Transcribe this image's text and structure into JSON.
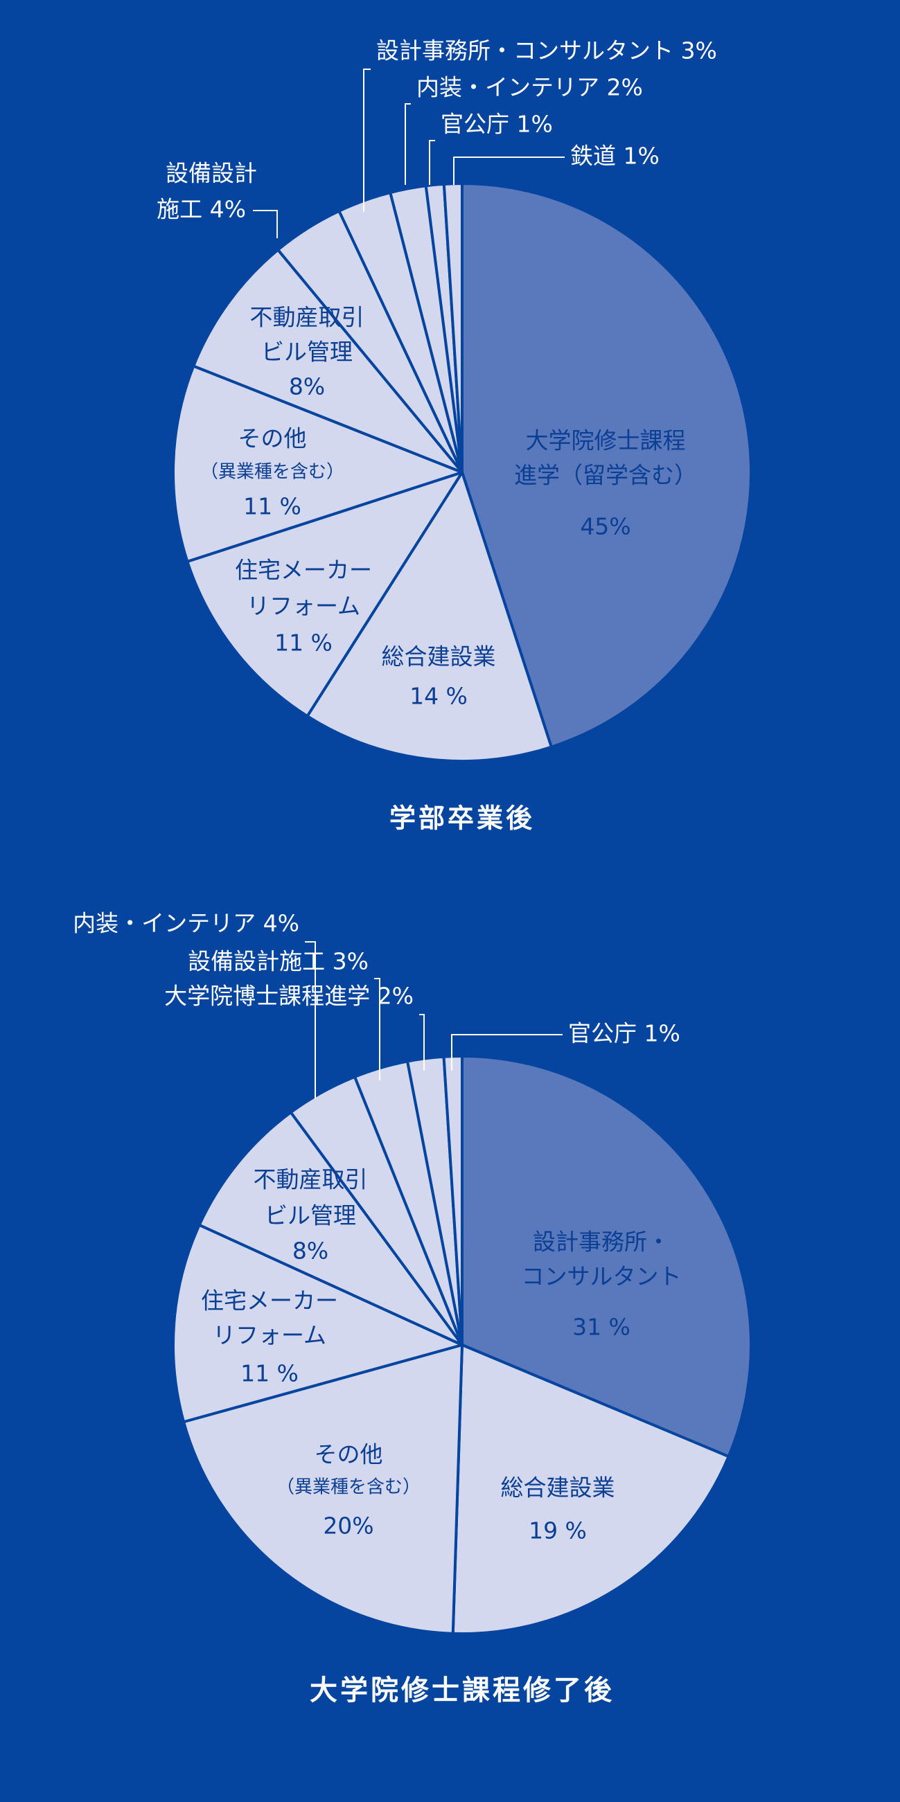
{
  "colors": {
    "background": "#0545a0",
    "highlight_slice": "#5a79bd",
    "slice": "#d4d8ee",
    "slice_border": "#0545a0",
    "label_inside": "#0b3f94",
    "label_outside": "#ffffff",
    "leader": "#ffffff"
  },
  "chart_data": [
    {
      "type": "pie",
      "title": "学部卒業後",
      "slices": [
        {
          "label": "大学院修士課程進学（留学含む）",
          "lines": [
            "大学院修士課程",
            "進学（留学含む）"
          ],
          "value": 45,
          "value_label": "45%",
          "highlight": true
        },
        {
          "label": "総合建設業",
          "lines": [
            "総合建設業"
          ],
          "value": 14,
          "value_label": "14 %"
        },
        {
          "label": "住宅メーカー リフォーム",
          "lines": [
            "住宅メーカー",
            "リフォーム"
          ],
          "value": 11,
          "value_label": "11 %"
        },
        {
          "label": "その他（異業種を含む）",
          "lines": [
            "その他",
            "（異業種を含む）"
          ],
          "value": 11,
          "value_label": "11 %"
        },
        {
          "label": "不動産取引 ビル管理",
          "lines": [
            "不動産取引",
            "ビル管理"
          ],
          "value": 8,
          "value_label": "8%"
        },
        {
          "label": "設備設計施工",
          "lines": [
            "設備設計",
            "施工 4%"
          ],
          "value": 4,
          "value_label": "4%",
          "outside": true
        },
        {
          "label": "設計事務所・コンサルタント",
          "lines": [
            "設計事務所・コンサルタント 3%"
          ],
          "value": 3,
          "value_label": "3%",
          "outside": true
        },
        {
          "label": "内装・インテリア",
          "lines": [
            "内装・インテリア 2%"
          ],
          "value": 2,
          "value_label": "2%",
          "outside": true
        },
        {
          "label": "官公庁",
          "lines": [
            "官公庁 1%"
          ],
          "value": 1,
          "value_label": "1%",
          "outside": true
        },
        {
          "label": "鉄道",
          "lines": [
            "鉄道 1%"
          ],
          "value": 1,
          "value_label": "1%",
          "outside": true
        }
      ]
    },
    {
      "type": "pie",
      "title": "大学院修士課程修了後",
      "slices": [
        {
          "label": "設計事務所・コンサルタント",
          "lines": [
            "設計事務所・",
            "コンサルタント"
          ],
          "value": 31,
          "value_label": "31 %",
          "highlight": true
        },
        {
          "label": "総合建設業",
          "lines": [
            "総合建設業"
          ],
          "value": 19,
          "value_label": "19 %"
        },
        {
          "label": "その他（異業種を含む）",
          "lines": [
            "その他",
            "（異業種を含む）"
          ],
          "value": 20,
          "value_label": "20%"
        },
        {
          "label": "住宅メーカー リフォーム",
          "lines": [
            "住宅メーカー",
            "リフォーム"
          ],
          "value": 11,
          "value_label": "11 %"
        },
        {
          "label": "不動産取引 ビル管理",
          "lines": [
            "不動産取引",
            "ビル管理"
          ],
          "value": 8,
          "value_label": "8%"
        },
        {
          "label": "内装・インテリア",
          "lines": [
            "内装・インテリア 4%"
          ],
          "value": 4,
          "value_label": "4%",
          "outside": true
        },
        {
          "label": "設備設計施工",
          "lines": [
            "設備設計施工 3%"
          ],
          "value": 3,
          "value_label": "3%",
          "outside": true
        },
        {
          "label": "大学院博士課程進学",
          "lines": [
            "大学院博士課程進学 2%"
          ],
          "value": 2,
          "value_label": "2%",
          "outside": true
        },
        {
          "label": "官公庁",
          "lines": [
            "官公庁 1%"
          ],
          "value": 1,
          "value_label": "1%",
          "outside": true
        }
      ]
    }
  ]
}
